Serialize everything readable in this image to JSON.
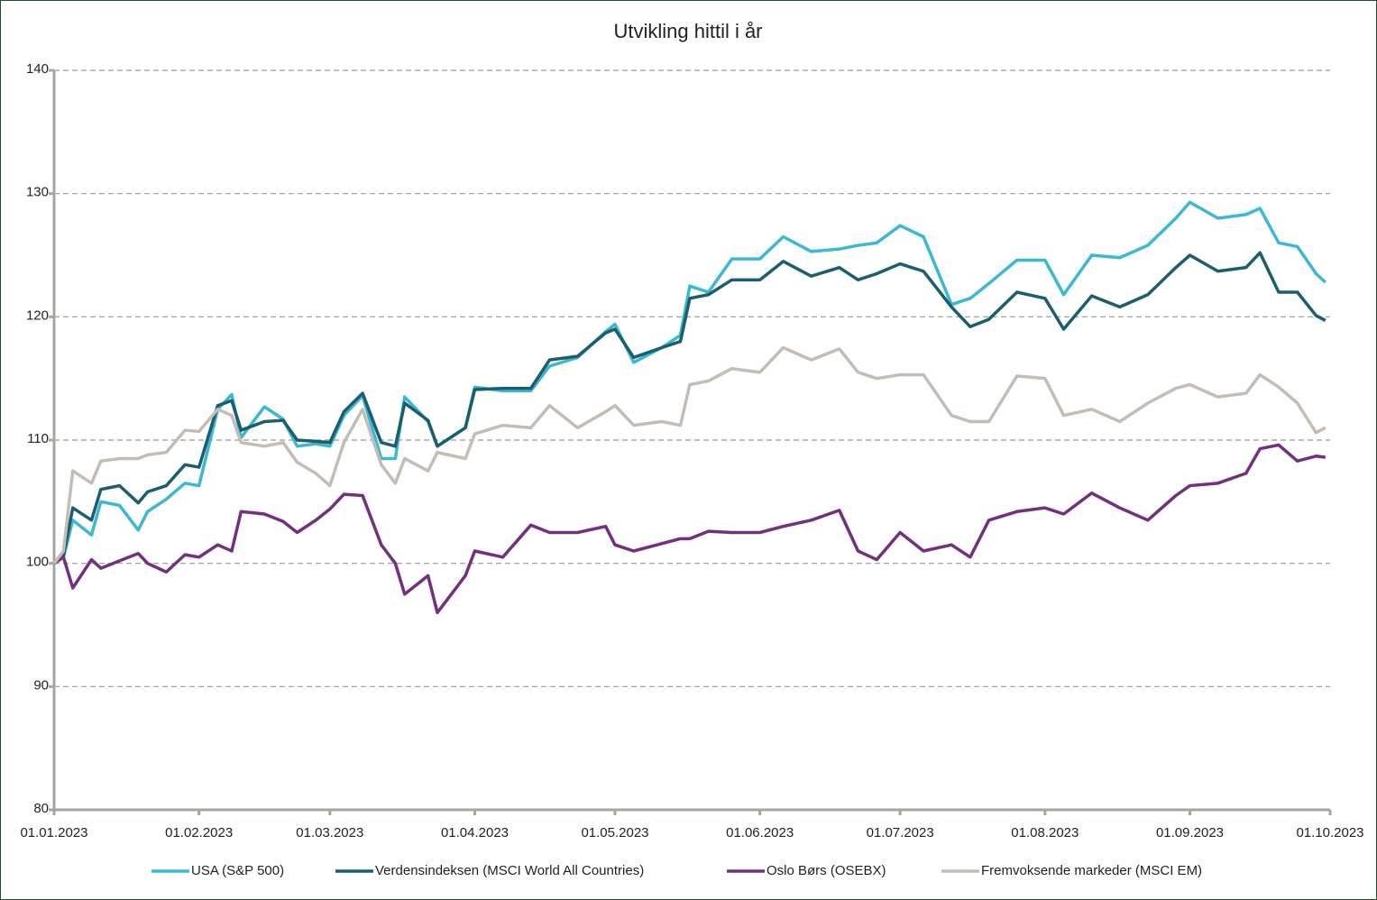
{
  "chart_data": {
    "type": "line",
    "title": "Utvikling hittil i år",
    "x": [
      "01.01.2023",
      "03.01.2023",
      "05.01.2023",
      "09.01.2023",
      "11.01.2023",
      "15.01.2023",
      "19.01.2023",
      "21.01.2023",
      "25.01.2023",
      "29.01.2023",
      "01.02.2023",
      "05.02.2023",
      "08.02.2023",
      "10.02.2023",
      "15.02.2023",
      "19.02.2023",
      "22.02.2023",
      "26.02.2023",
      "01.03.2023",
      "04.03.2023",
      "08.03.2023",
      "12.03.2023",
      "15.03.2023",
      "17.03.2023",
      "22.03.2023",
      "24.03.2023",
      "30.03.2023",
      "01.04.2023",
      "07.04.2023",
      "13.04.2023",
      "17.04.2023",
      "23.04.2023",
      "29.04.2023",
      "01.05.2023",
      "05.05.2023",
      "11.05.2023",
      "15.05.2023",
      "17.05.2023",
      "21.05.2023",
      "26.05.2023",
      "01.06.2023",
      "06.06.2023",
      "12.06.2023",
      "18.06.2023",
      "22.06.2023",
      "26.06.2023",
      "01.07.2023",
      "06.07.2023",
      "12.07.2023",
      "16.07.2023",
      "20.07.2023",
      "26.07.2023",
      "01.08.2023",
      "05.08.2023",
      "11.08.2023",
      "17.08.2023",
      "23.08.2023",
      "29.08.2023",
      "01.09.2023",
      "07.09.2023",
      "13.09.2023",
      "16.09.2023",
      "20.09.2023",
      "24.09.2023",
      "28.09.2023",
      "30.09.2023"
    ],
    "series": [
      {
        "name": "USA (S&P 500)",
        "color": "#3bb8d4",
        "values": [
          100,
          100.5,
          103.5,
          102.3,
          105,
          104.7,
          102.7,
          104.2,
          105.2,
          106.5,
          106.3,
          112.5,
          113.7,
          110.2,
          112.7,
          111.7,
          109.5,
          109.7,
          109.5,
          112,
          113.6,
          108.5,
          108.5,
          113.5,
          111.5,
          109.5,
          111,
          114.3,
          114,
          114,
          116,
          116.7,
          118.8,
          119.4,
          116.3,
          117.5,
          118.5,
          122.5,
          122,
          124.7,
          124.7,
          126.5,
          125.3,
          125.5,
          125.8,
          126,
          127.4,
          126.5,
          121,
          121.5,
          122.7,
          124.6,
          124.6,
          121.8,
          125,
          124.8,
          125.8,
          128,
          129.3,
          128,
          128.3,
          128.8,
          126,
          125.7,
          123.5,
          122.8
        ]
      },
      {
        "name": "Verdensindeksen (MSCI World All Countries)",
        "color": "#1b5e6e",
        "values": [
          100,
          100.6,
          104.5,
          103.5,
          106,
          106.3,
          104.9,
          105.8,
          106.3,
          108,
          107.8,
          112.8,
          113.2,
          110.8,
          111.5,
          111.6,
          110,
          109.9,
          109.8,
          112.3,
          113.8,
          109.8,
          109.5,
          113,
          111.6,
          109.5,
          111,
          114.1,
          114.2,
          114.2,
          116.5,
          116.8,
          118.7,
          119,
          116.7,
          117.5,
          118,
          121.5,
          121.8,
          123,
          123,
          124.5,
          123.3,
          124,
          123,
          123.5,
          124.3,
          123.7,
          120.8,
          119.2,
          119.8,
          122,
          121.5,
          119,
          121.7,
          120.8,
          121.8,
          124,
          125,
          123.7,
          124,
          125.2,
          122,
          122,
          120.1,
          119.7
        ]
      },
      {
        "name": "Oslo Børs (OSEBX)",
        "color": "#72307f",
        "values": [
          100,
          100.5,
          98,
          100.3,
          99.6,
          100.2,
          100.8,
          100,
          99.3,
          100.7,
          100.5,
          101.5,
          101,
          104.2,
          104,
          103.4,
          102.5,
          103.5,
          104.4,
          105.6,
          105.5,
          101.5,
          100,
          97.5,
          99,
          96,
          99,
          101,
          100.5,
          103.1,
          102.5,
          102.5,
          103,
          101.5,
          101,
          101.6,
          102,
          102,
          102.6,
          102.5,
          102.5,
          103,
          103.5,
          104.3,
          101,
          100.3,
          102.5,
          101,
          101.5,
          100.5,
          103.5,
          104.2,
          104.5,
          104,
          105.7,
          104.5,
          103.5,
          105.5,
          106.3,
          106.5,
          107.3,
          109.3,
          109.6,
          108.3,
          108.7,
          108.6
        ]
      },
      {
        "name": "Fremvoksende markeder (MSCI EM)",
        "color": "#c4bdb5",
        "values": [
          100,
          101,
          107.5,
          106.5,
          108.3,
          108.5,
          108.5,
          108.8,
          109,
          110.8,
          110.7,
          112.5,
          112,
          109.8,
          109.5,
          109.8,
          108.2,
          107.3,
          106.3,
          109.8,
          112.5,
          108,
          106.5,
          108.5,
          107.5,
          109,
          108.5,
          110.5,
          111.2,
          111,
          112.8,
          111,
          112.3,
          112.8,
          111.2,
          111.5,
          111.2,
          114.5,
          114.8,
          115.8,
          115.5,
          117.5,
          116.5,
          117.4,
          115.5,
          115,
          115.3,
          115.3,
          112,
          111.5,
          111.5,
          115.2,
          115,
          112,
          112.5,
          111.5,
          113,
          114.2,
          114.5,
          113.5,
          113.8,
          115.3,
          114.3,
          113,
          110.6,
          111
        ]
      }
    ],
    "xlim": [
      "01.01.2023",
      "01.10.2023"
    ],
    "xticks": [
      "01.01.2023",
      "01.02.2023",
      "01.03.2023",
      "01.04.2023",
      "01.05.2023",
      "01.06.2023",
      "01.07.2023",
      "01.08.2023",
      "01.09.2023",
      "01.10.2023"
    ],
    "ylim": [
      80,
      140
    ],
    "yticks": [
      80,
      90,
      100,
      110,
      120,
      130,
      140
    ],
    "grid": true,
    "legend": "bottom"
  }
}
